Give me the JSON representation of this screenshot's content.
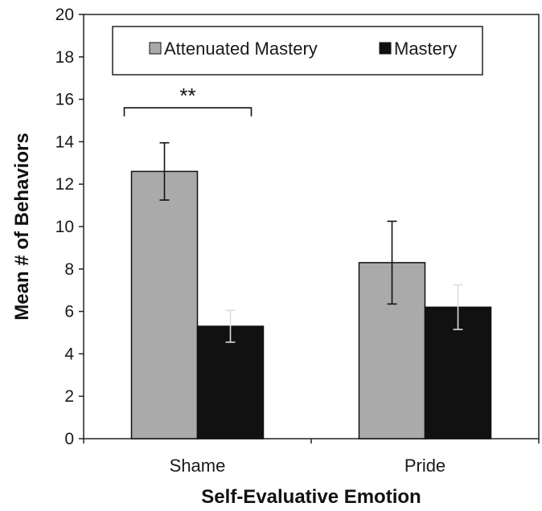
{
  "chart_data": {
    "type": "bar",
    "categories": [
      "Shame",
      "Pride"
    ],
    "series": [
      {
        "name": "Attenuated Mastery",
        "values": [
          12.6,
          8.3
        ],
        "error": [
          1.35,
          1.95
        ],
        "color": "#aaaaaa"
      },
      {
        "name": "Mastery",
        "values": [
          5.3,
          6.2
        ],
        "error": [
          0.75,
          1.05
        ],
        "color": "#111111"
      }
    ],
    "xlabel": "Self-Evaluative Emotion",
    "ylabel": "Mean # of Behaviors",
    "ylim": [
      0,
      20
    ],
    "yticks": [
      "0",
      "2",
      "4",
      "6",
      "8",
      "10",
      "12",
      "14",
      "16",
      "18",
      "20"
    ],
    "grid": false,
    "legend_position": "top",
    "annotations": [
      {
        "text": "**",
        "category": "Shame",
        "type": "significance-bracket"
      }
    ]
  }
}
